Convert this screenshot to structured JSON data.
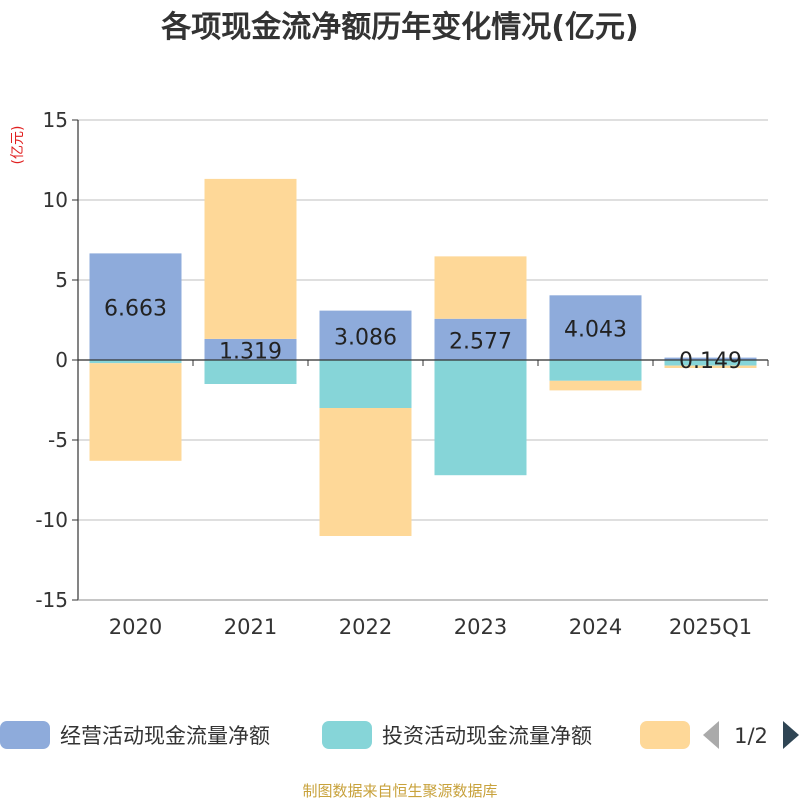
{
  "title": "各项现金流净额历年变化情况(亿元)",
  "footer": "制图数据来自恒生聚源数据库",
  "legend": {
    "items": [
      {
        "label": "经营活动现金流量净额",
        "color": "#8eabdb"
      },
      {
        "label": "投资活动现金流量净额",
        "color": "#86d5d8"
      },
      {
        "label": "",
        "color": "#fed898"
      }
    ],
    "page": "1/2"
  },
  "chart_data": {
    "type": "bar",
    "stacked": true,
    "ylabel": "(亿元)",
    "ylim": [
      -15,
      15
    ],
    "yticks": [
      15,
      10,
      5,
      0,
      -5,
      -10,
      -15
    ],
    "grid": true,
    "legend_position": "bottom",
    "categories": [
      "2020",
      "2021",
      "2022",
      "2023",
      "2024",
      "2025Q1"
    ],
    "series": [
      {
        "name": "经营活动现金流量净额",
        "color": "#8eabdb",
        "values": [
          6.663,
          1.319,
          3.086,
          2.577,
          4.043,
          0.149
        ],
        "labels": [
          "6.663",
          "1.319",
          "3.086",
          "2.577",
          "4.043",
          "0.149"
        ]
      },
      {
        "name": "投资活动现金流量净额",
        "color": "#86d5d8",
        "values": [
          -0.2,
          -1.5,
          -3.0,
          -7.2,
          -1.3,
          -0.35
        ]
      },
      {
        "color": "#fed898",
        "values": [
          -6.1,
          10.0,
          -8.0,
          3.9,
          -0.6,
          -0.15
        ]
      }
    ]
  }
}
